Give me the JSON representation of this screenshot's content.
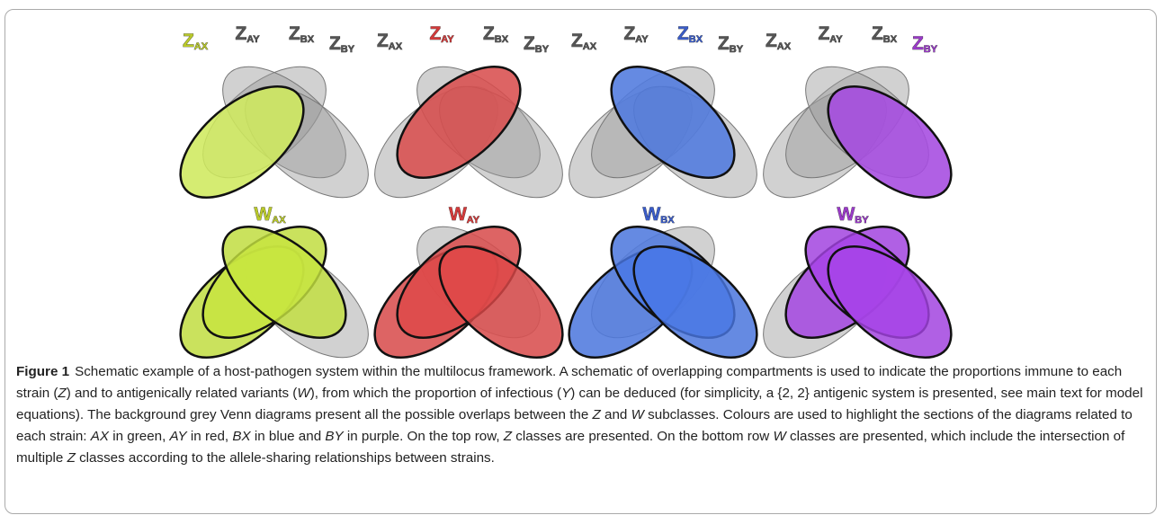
{
  "figure": {
    "top": [
      {
        "labels": [
          {
            "letter": "Z",
            "sub": "AX"
          },
          {
            "letter": "Z",
            "sub": "AY"
          },
          {
            "letter": "Z",
            "sub": "BX"
          },
          {
            "letter": "Z",
            "sub": "BY"
          }
        ],
        "highlight": [
          0
        ],
        "color": "#d6f25a",
        "label_color": "#b9c92a"
      },
      {
        "labels": [
          {
            "letter": "Z",
            "sub": "AX"
          },
          {
            "letter": "Z",
            "sub": "AY"
          },
          {
            "letter": "Z",
            "sub": "BX"
          },
          {
            "letter": "Z",
            "sub": "BY"
          }
        ],
        "highlight": [
          1
        ],
        "color": "#e04848",
        "label_color": "#d33a3a"
      },
      {
        "labels": [
          {
            "letter": "Z",
            "sub": "AX"
          },
          {
            "letter": "Z",
            "sub": "AY"
          },
          {
            "letter": "Z",
            "sub": "BX"
          },
          {
            "letter": "Z",
            "sub": "BY"
          }
        ],
        "highlight": [
          2
        ],
        "color": "#4a78e6",
        "label_color": "#3a5cc8"
      },
      {
        "labels": [
          {
            "letter": "Z",
            "sub": "AX"
          },
          {
            "letter": "Z",
            "sub": "AY"
          },
          {
            "letter": "Z",
            "sub": "BX"
          },
          {
            "letter": "Z",
            "sub": "BY"
          }
        ],
        "highlight": [
          3
        ],
        "color": "#a844e8",
        "label_color": "#9a3ac8"
      }
    ],
    "bottom": [
      {
        "label": {
          "letter": "W",
          "sub": "AX"
        },
        "highlight": [
          0,
          1,
          2
        ],
        "color": "#c8e640",
        "label_color": "#b9c92a"
      },
      {
        "label": {
          "letter": "W",
          "sub": "AY"
        },
        "highlight": [
          0,
          1,
          3
        ],
        "color": "#e04848",
        "label_color": "#d33a3a"
      },
      {
        "label": {
          "letter": "W",
          "sub": "BX"
        },
        "highlight": [
          0,
          2,
          3
        ],
        "color": "#4a78e6",
        "label_color": "#3a5cc8"
      },
      {
        "label": {
          "letter": "W",
          "sub": "BY"
        },
        "highlight": [
          1,
          2,
          3
        ],
        "color": "#a844e8",
        "label_color": "#9a3ac8"
      }
    ]
  },
  "caption": {
    "label": "Figure 1",
    "parts": [
      {
        "text": "Schematic example of a host-pathogen system within the multilocus framework. A schematic of overlapping compartments is used to indicate the proportions immune to each strain ("
      },
      {
        "text": "Z",
        "italic": true
      },
      {
        "text": ") and to antigenically related variants ("
      },
      {
        "text": "W",
        "italic": true
      },
      {
        "text": "), from which the proportion of infectious ("
      },
      {
        "text": "Y",
        "italic": true
      },
      {
        "text": ") can be deduced (for simplicity, a {2, 2} antigenic system is presented, see main text for model equations). The background grey Venn diagrams present all the possible overlaps between the "
      },
      {
        "text": "Z",
        "italic": true
      },
      {
        "text": " and "
      },
      {
        "text": "W",
        "italic": true
      },
      {
        "text": " subclasses. Colours are used to highlight the sections of the diagrams related to each strain: "
      },
      {
        "text": "AX",
        "italic": true
      },
      {
        "text": " in green, "
      },
      {
        "text": "AY",
        "italic": true
      },
      {
        "text": " in red, "
      },
      {
        "text": "BX",
        "italic": true
      },
      {
        "text": " in blue and "
      },
      {
        "text": "BY",
        "italic": true
      },
      {
        "text": " in purple. On the top row, "
      },
      {
        "text": "Z",
        "italic": true
      },
      {
        "text": " classes are presented. On the bottom row "
      },
      {
        "text": "W",
        "italic": true
      },
      {
        "text": " classes are presented, which include the intersection of multiple "
      },
      {
        "text": "Z",
        "italic": true
      },
      {
        "text": " classes according to the allele-sharing relationships between strains."
      }
    ]
  }
}
